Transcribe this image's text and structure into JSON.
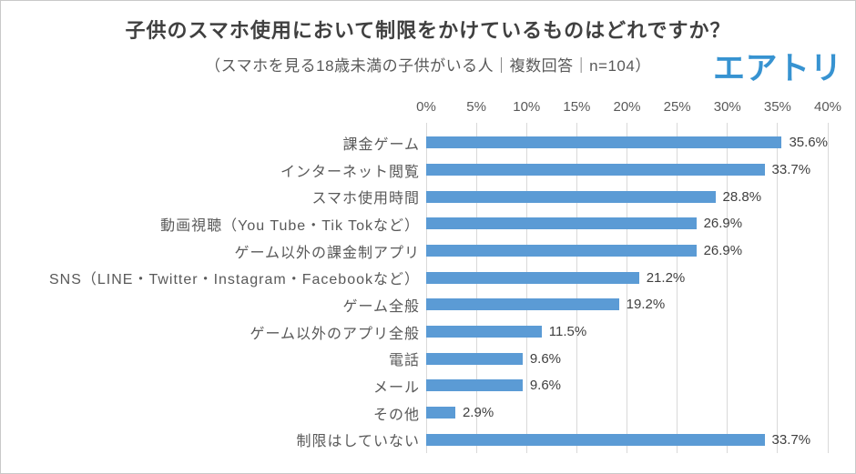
{
  "header": {
    "logo_text": "エアトリ",
    "logo_color": "#3793d1"
  },
  "chart_data": {
    "type": "bar",
    "orientation": "horizontal",
    "title": "子供のスマホ使用において制限をかけているものはどれですか？",
    "subtitle": "（スマホを見る18歳未満の子供がいる人｜複数回答｜n=104）",
    "categories": [
      "課金ゲーム",
      "インターネット閲覧",
      "スマホ使用時間",
      "動画視聴（You Tube・Tik Tokなど）",
      "ゲーム以外の課金制アプリ",
      "SNS（LINE・Twitter・Instagram・Facebookなど）",
      "ゲーム全般",
      "ゲーム以外のアプリ全般",
      "電話",
      "メール",
      "その他",
      "制限はしていない"
    ],
    "values": [
      35.6,
      33.7,
      28.8,
      26.9,
      26.9,
      21.2,
      19.2,
      11.5,
      9.6,
      9.6,
      2.9,
      33.7
    ],
    "value_suffix": "%",
    "x_ticks": [
      "0%",
      "5%",
      "10%",
      "15%",
      "20%",
      "25%",
      "30%",
      "35%",
      "40%"
    ],
    "xlim": [
      0,
      40
    ],
    "grid": true,
    "legend": "none",
    "bar_color": "#5b9bd5",
    "data_label_color": "#404040",
    "axis_label_color": "#595959",
    "gridline_color": "#d9d9d9"
  }
}
